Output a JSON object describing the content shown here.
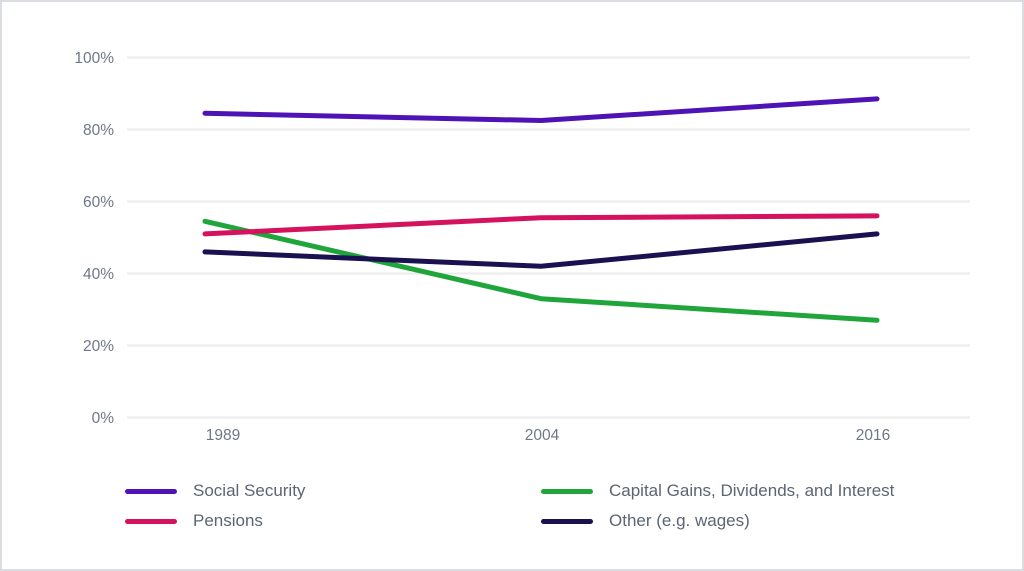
{
  "chart_data": {
    "type": "line",
    "title": "",
    "xlabel": "",
    "ylabel": "",
    "categories": [
      "1989",
      "2004",
      "2016"
    ],
    "ylim": [
      0,
      100
    ],
    "grid": "horizontal-only",
    "legend_position": "bottom-two-columns",
    "y_ticks": [
      {
        "value": 0,
        "label": "0%"
      },
      {
        "value": 20,
        "label": "20%"
      },
      {
        "value": 40,
        "label": "40%"
      },
      {
        "value": 60,
        "label": "60%"
      },
      {
        "value": 80,
        "label": "80%"
      },
      {
        "value": 100,
        "label": "100%"
      }
    ],
    "series": [
      {
        "id": "social-security",
        "name": "Social Security",
        "color": "#4e13b5",
        "values": [
          84.5,
          82.5,
          88.5
        ]
      },
      {
        "id": "pensions",
        "name": "Pensions",
        "color": "#d4125e",
        "values": [
          51,
          55.5,
          56
        ]
      },
      {
        "id": "capital-gains",
        "name": "Capital Gains, Dividends, and Interest",
        "color": "#1fa53a",
        "values": [
          54.5,
          33,
          27
        ]
      },
      {
        "id": "other-wages",
        "name": "Other (e.g. wages)",
        "color": "#1b1050",
        "values": [
          46,
          42,
          51
        ]
      }
    ]
  }
}
